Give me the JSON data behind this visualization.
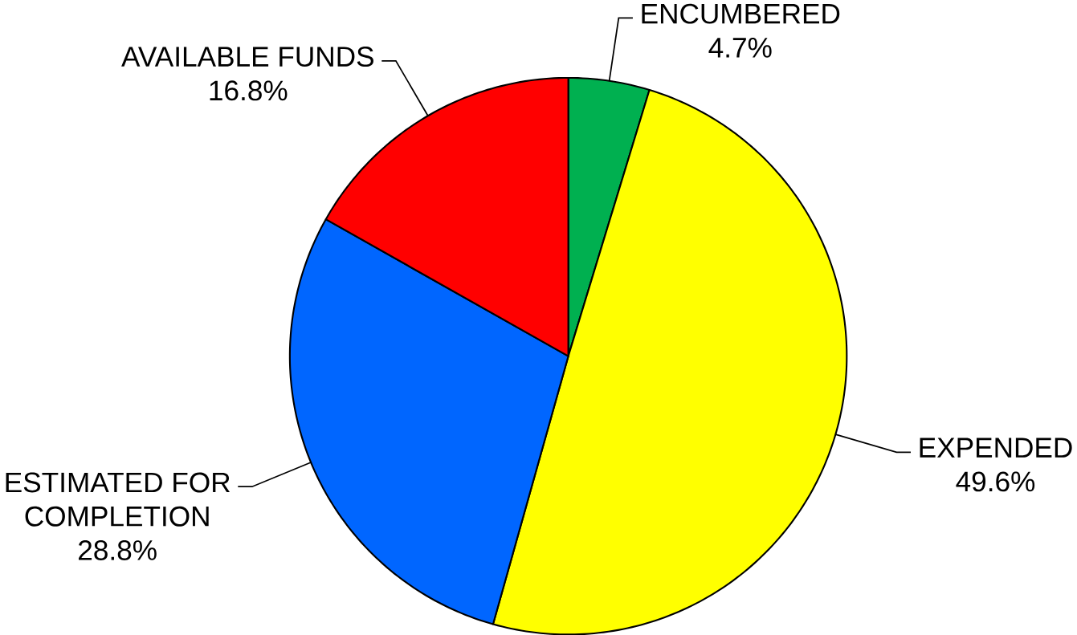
{
  "chart_data": {
    "type": "pie",
    "categories": [
      "ENCUMBERED",
      "EXPENDED",
      "ESTIMATED FOR COMPLETION",
      "AVAILABLE FUNDS"
    ],
    "values": [
      4.7,
      49.6,
      28.8,
      16.8
    ],
    "colors": [
      "#00b050",
      "#ffff00",
      "#0066ff",
      "#ff0000"
    ],
    "value_labels": [
      "4.7%",
      "49.6%",
      "28.8%",
      "16.8%"
    ]
  }
}
